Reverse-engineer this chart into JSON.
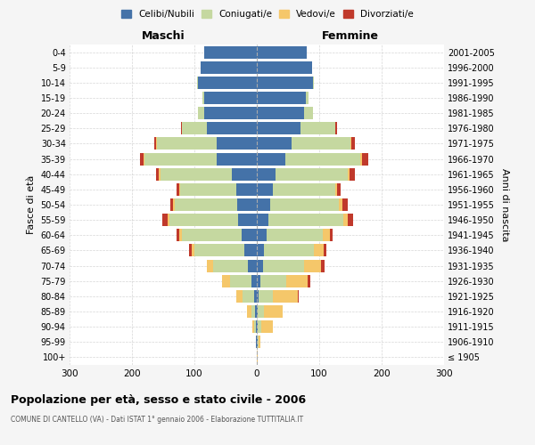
{
  "age_groups": [
    "100+",
    "95-99",
    "90-94",
    "85-89",
    "80-84",
    "75-79",
    "70-74",
    "65-69",
    "60-64",
    "55-59",
    "50-54",
    "45-49",
    "40-44",
    "35-39",
    "30-34",
    "25-29",
    "20-24",
    "15-19",
    "10-14",
    "5-9",
    "0-4"
  ],
  "birth_years": [
    "≤ 1905",
    "1906-1910",
    "1911-1915",
    "1916-1920",
    "1921-1925",
    "1926-1930",
    "1931-1935",
    "1936-1940",
    "1941-1945",
    "1946-1950",
    "1951-1955",
    "1956-1960",
    "1961-1965",
    "1966-1970",
    "1971-1975",
    "1976-1980",
    "1981-1985",
    "1986-1990",
    "1991-1995",
    "1996-2000",
    "2001-2005"
  ],
  "colors": {
    "celibi": "#4472a8",
    "coniugati": "#c5d8a0",
    "vedovi": "#f5c76a",
    "divorziati": "#c0392b"
  },
  "maschi": {
    "celibi": [
      0,
      1,
      2,
      3,
      5,
      8,
      15,
      20,
      25,
      30,
      32,
      33,
      40,
      65,
      65,
      80,
      85,
      85,
      95,
      90,
      85
    ],
    "coniugati": [
      0,
      0,
      2,
      5,
      18,
      35,
      55,
      80,
      95,
      110,
      100,
      90,
      115,
      115,
      95,
      40,
      10,
      2,
      1,
      0,
      0
    ],
    "vedovi": [
      0,
      0,
      3,
      8,
      10,
      12,
      10,
      4,
      4,
      3,
      2,
      2,
      2,
      2,
      2,
      0,
      0,
      0,
      0,
      0,
      0
    ],
    "divorziati": [
      0,
      0,
      0,
      0,
      0,
      0,
      0,
      4,
      4,
      8,
      5,
      3,
      5,
      5,
      3,
      2,
      0,
      0,
      0,
      0,
      0
    ]
  },
  "femmine": {
    "nubili": [
      0,
      1,
      2,
      2,
      3,
      5,
      10,
      12,
      15,
      18,
      22,
      25,
      30,
      45,
      55,
      70,
      75,
      78,
      90,
      88,
      80
    ],
    "coniugate": [
      0,
      2,
      5,
      10,
      22,
      42,
      65,
      80,
      90,
      120,
      110,
      100,
      115,
      120,
      95,
      55,
      15,
      5,
      2,
      0,
      0
    ],
    "vedove": [
      1,
      3,
      18,
      30,
      40,
      35,
      28,
      15,
      12,
      8,
      5,
      4,
      4,
      3,
      2,
      1,
      0,
      0,
      0,
      0,
      0
    ],
    "divorziate": [
      0,
      0,
      0,
      0,
      2,
      4,
      6,
      5,
      4,
      8,
      8,
      5,
      8,
      10,
      5,
      3,
      0,
      0,
      0,
      0,
      0
    ]
  },
  "title": "Popolazione per età, sesso e stato civile - 2006",
  "subtitle": "COMUNE DI CANTELLO (VA) - Dati ISTAT 1° gennaio 2006 - Elaborazione TUTTITALIA.IT",
  "xlabel_left": "Maschi",
  "xlabel_right": "Femmine",
  "ylabel_left": "Fasce di età",
  "ylabel_right": "Anni di nascita",
  "legend_labels": [
    "Celibi/Nubili",
    "Coniugati/e",
    "Vedovi/e",
    "Divorziati/e"
  ],
  "xlim": 300,
  "background": "#f5f5f5",
  "plot_background": "#ffffff"
}
